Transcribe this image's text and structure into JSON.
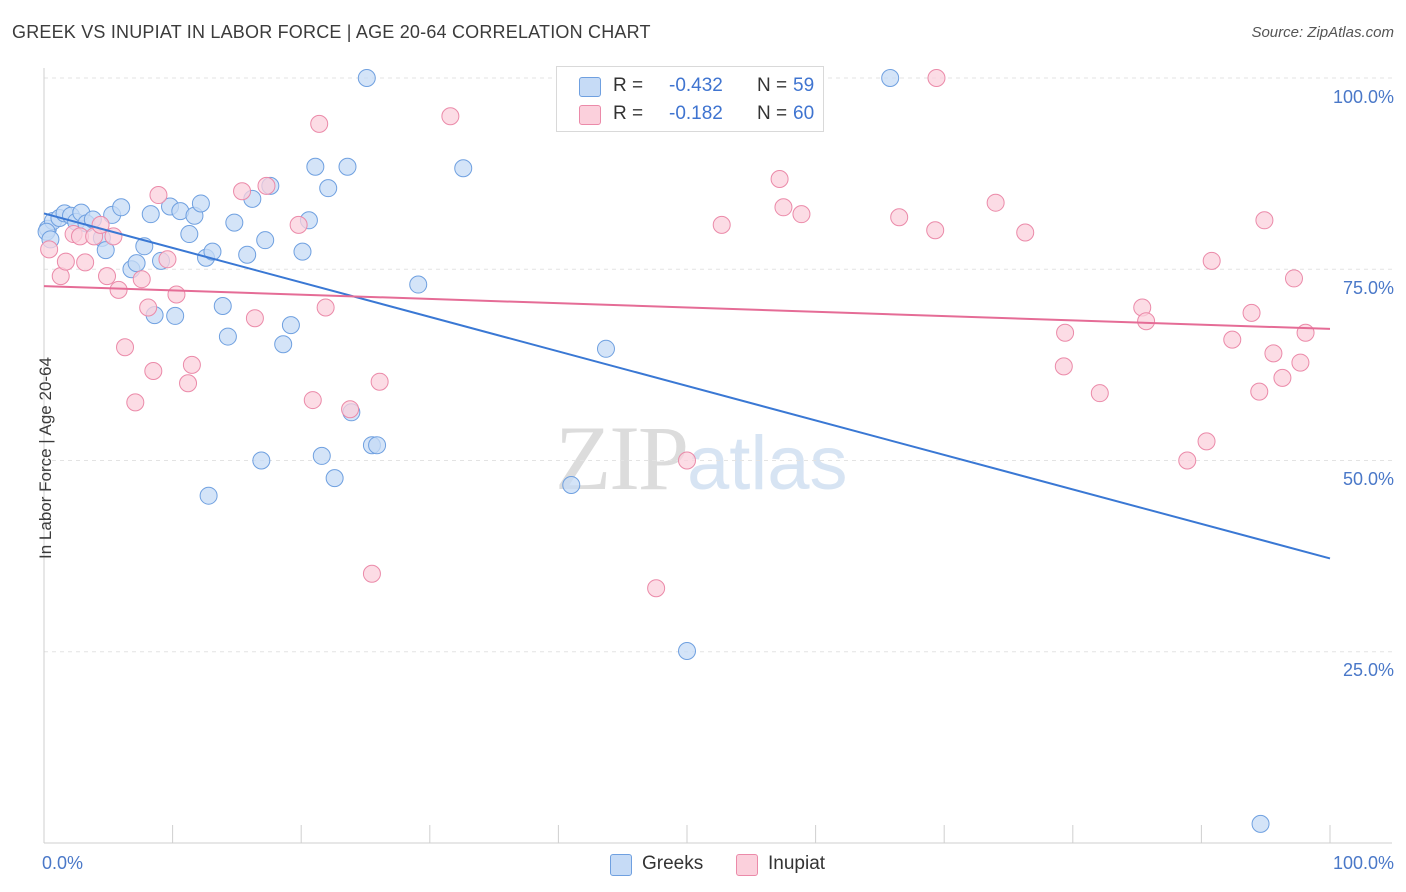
{
  "title": "GREEK VS INUPIAT IN LABOR FORCE | AGE 20-64 CORRELATION CHART",
  "source": "Source: ZipAtlas.com",
  "watermark": {
    "zip": "ZIP",
    "atlas": "atlas"
  },
  "legend_top": {
    "rows": [
      {
        "r_label": "R =",
        "r_value": "-0.432",
        "n_label": "N =",
        "n_value": "59",
        "color": "#a9c8f0"
      },
      {
        "r_label": "R =",
        "r_value": "-0.182",
        "n_label": "N =",
        "n_value": "60",
        "color": "#f7b8ca"
      }
    ]
  },
  "legend_bottom": [
    {
      "label": "Greeks",
      "color": "#a9c8f0"
    },
    {
      "label": "Inupiat",
      "color": "#f7b8ca"
    }
  ],
  "chart_data": {
    "type": "scatter",
    "title": "GREEK VS INUPIAT IN LABOR FORCE | AGE 20-64 CORRELATION CHART",
    "xlabel": "",
    "ylabel": "In Labor Force | Age 20-64",
    "xlim": [
      0,
      100
    ],
    "ylim": [
      0,
      100
    ],
    "x_tick_labels": [
      "0.0%",
      "100.0%"
    ],
    "y_ticks": [
      25,
      50,
      75,
      100
    ],
    "y_tick_labels": [
      "25.0%",
      "50.0%",
      "75.0%",
      "100.0%"
    ],
    "grid": true,
    "series": [
      {
        "name": "Greeks",
        "color": "#6fa0e0",
        "fill": "#c6dbf6",
        "trend_color": "#3a78d4",
        "trend": {
          "x": [
            0,
            100
          ],
          "y": [
            82.3,
            37.2
          ]
        },
        "points": [
          [
            0.3,
            80.3
          ],
          [
            0.7,
            81.3
          ],
          [
            1.2,
            81.7
          ],
          [
            1.6,
            82.3
          ],
          [
            2.1,
            82.0
          ],
          [
            2.5,
            81.2
          ],
          [
            2.9,
            82.4
          ],
          [
            3.3,
            81.0
          ],
          [
            3.8,
            81.5
          ],
          [
            4.5,
            79.1
          ],
          [
            5.3,
            82.1
          ],
          [
            6.0,
            83.1
          ],
          [
            4.8,
            77.5
          ],
          [
            6.8,
            75.0
          ],
          [
            7.2,
            75.8
          ],
          [
            7.8,
            78.0
          ],
          [
            8.3,
            82.2
          ],
          [
            8.6,
            69.0
          ],
          [
            9.1,
            76.1
          ],
          [
            9.8,
            83.2
          ],
          [
            10.2,
            68.9
          ],
          [
            10.6,
            82.6
          ],
          [
            11.3,
            79.6
          ],
          [
            11.7,
            82.0
          ],
          [
            12.2,
            83.6
          ],
          [
            12.6,
            76.5
          ],
          [
            13.1,
            77.3
          ],
          [
            13.9,
            70.2
          ],
          [
            14.3,
            66.2
          ],
          [
            14.8,
            81.1
          ],
          [
            15.8,
            76.9
          ],
          [
            16.2,
            84.2
          ],
          [
            16.9,
            50.0
          ],
          [
            17.2,
            78.8
          ],
          [
            17.6,
            85.9
          ],
          [
            18.6,
            65.2
          ],
          [
            19.2,
            67.7
          ],
          [
            20.1,
            77.3
          ],
          [
            20.6,
            81.4
          ],
          [
            21.1,
            88.4
          ],
          [
            21.6,
            50.6
          ],
          [
            22.1,
            85.6
          ],
          [
            22.6,
            47.7
          ],
          [
            23.6,
            88.4
          ],
          [
            23.9,
            56.3
          ],
          [
            25.1,
            100.0
          ],
          [
            25.5,
            52.0
          ],
          [
            25.9,
            52.0
          ],
          [
            29.1,
            73.0
          ],
          [
            32.6,
            88.2
          ],
          [
            12.8,
            45.4
          ],
          [
            41.0,
            46.8
          ],
          [
            43.7,
            64.6
          ],
          [
            50.0,
            25.1
          ],
          [
            65.8,
            100.0
          ],
          [
            94.6,
            2.5
          ],
          [
            56.0,
            100.0
          ],
          [
            0.2,
            79.9
          ],
          [
            0.5,
            78.9
          ]
        ]
      },
      {
        "name": "Inupiat",
        "color": "#eb8aa9",
        "fill": "#fbd0dc",
        "trend_color": "#e56c96",
        "trend": {
          "x": [
            0,
            100
          ],
          "y": [
            72.8,
            67.2
          ]
        },
        "points": [
          [
            0.4,
            77.6
          ],
          [
            1.3,
            74.1
          ],
          [
            1.7,
            76.0
          ],
          [
            2.3,
            79.6
          ],
          [
            2.8,
            79.3
          ],
          [
            3.2,
            75.9
          ],
          [
            3.9,
            79.3
          ],
          [
            4.4,
            80.8
          ],
          [
            4.9,
            74.1
          ],
          [
            5.4,
            79.3
          ],
          [
            5.8,
            72.3
          ],
          [
            6.3,
            64.8
          ],
          [
            7.1,
            57.6
          ],
          [
            7.6,
            73.7
          ],
          [
            8.1,
            70.0
          ],
          [
            8.5,
            61.7
          ],
          [
            8.9,
            84.7
          ],
          [
            9.6,
            76.3
          ],
          [
            10.3,
            71.7
          ],
          [
            11.2,
            60.1
          ],
          [
            11.5,
            62.5
          ],
          [
            15.4,
            85.2
          ],
          [
            16.4,
            68.6
          ],
          [
            17.3,
            85.9
          ],
          [
            19.8,
            80.8
          ],
          [
            20.9,
            57.9
          ],
          [
            21.9,
            70.0
          ],
          [
            21.4,
            94.0
          ],
          [
            23.8,
            56.7
          ],
          [
            25.5,
            35.2
          ],
          [
            26.1,
            60.3
          ],
          [
            31.6,
            95.0
          ],
          [
            47.6,
            33.3
          ],
          [
            50.0,
            50.0
          ],
          [
            52.7,
            80.8
          ],
          [
            57.2,
            86.8
          ],
          [
            57.5,
            83.1
          ],
          [
            58.9,
            82.2
          ],
          [
            66.5,
            81.8
          ],
          [
            69.3,
            80.1
          ],
          [
            69.4,
            100.0
          ],
          [
            74.0,
            83.7
          ],
          [
            76.3,
            79.8
          ],
          [
            79.4,
            66.7
          ],
          [
            79.3,
            62.3
          ],
          [
            82.1,
            58.8
          ],
          [
            85.4,
            70.0
          ],
          [
            85.7,
            68.2
          ],
          [
            88.9,
            50.0
          ],
          [
            90.4,
            52.5
          ],
          [
            90.8,
            76.1
          ],
          [
            92.4,
            65.8
          ],
          [
            93.9,
            69.3
          ],
          [
            94.5,
            59.0
          ],
          [
            94.9,
            81.4
          ],
          [
            95.6,
            64.0
          ],
          [
            96.3,
            60.8
          ],
          [
            97.7,
            62.8
          ],
          [
            98.1,
            66.7
          ],
          [
            97.2,
            73.8
          ]
        ]
      }
    ]
  }
}
